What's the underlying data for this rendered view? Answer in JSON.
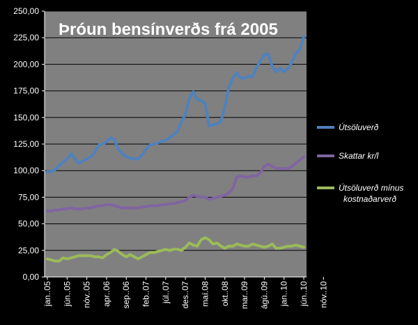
{
  "chart_data": {
    "type": "line",
    "title": "Þróun bensínverðs frá 2005",
    "xlabel": "",
    "ylabel": "",
    "ylim": [
      0,
      250
    ],
    "yticks": [
      "0,00",
      "25,00",
      "50,00",
      "75,00",
      "100,00",
      "125,00",
      "150,00",
      "175,00",
      "200,00",
      "225,00",
      "250,00"
    ],
    "xticks": [
      "jan..05",
      "jún..05",
      "nóv..05",
      "apr..06",
      "sep..06",
      "feb..07",
      "júl..07",
      "des..07",
      "maí.08",
      "okt..08",
      "mar..09",
      "ágú..09",
      "jan..10",
      "jún..10",
      "nóv..10"
    ],
    "grid": true,
    "legend_position": "right",
    "colors": {
      "background": "#000000",
      "plot_area": "#808080",
      "grid": "#000000",
      "text": "#ffffff"
    },
    "series": [
      {
        "name": "Útsöluverð",
        "color": "#4f81bd",
        "values": [
          99,
          99,
          101,
          105,
          108,
          111,
          116,
          111,
          107,
          109,
          111,
          113,
          117,
          124,
          125,
          127,
          131,
          129,
          120,
          116,
          113,
          112,
          111,
          111,
          115,
          120,
          124,
          125,
          126,
          128,
          128,
          131,
          134,
          137,
          146,
          153,
          168,
          174,
          167,
          166,
          163,
          142,
          143,
          144,
          146,
          160,
          178,
          187,
          192,
          187,
          187,
          189,
          188,
          197,
          203,
          209,
          210,
          198,
          193,
          196,
          193,
          196,
          202,
          210,
          214,
          226
        ]
      },
      {
        "name": "Skattar kr/l",
        "color": "#8064a2",
        "values": [
          62,
          62,
          63,
          63,
          64,
          64,
          65,
          64,
          64,
          64,
          65,
          65,
          66,
          67,
          67,
          68,
          68,
          67,
          66,
          65,
          65,
          65,
          65,
          65,
          66,
          66,
          67,
          67,
          67,
          68,
          68,
          69,
          69,
          70,
          71,
          72,
          75,
          77,
          76,
          75,
          75,
          73,
          74,
          75,
          76,
          77,
          79,
          83,
          94,
          95,
          94,
          94,
          95,
          95,
          98,
          104,
          106,
          104,
          102,
          102,
          102,
          102,
          104,
          107,
          110,
          113
        ]
      },
      {
        "name": "Útsöluverð mínus\nkostnaðarverð",
        "color": "#9bbb59",
        "values": [
          17,
          16,
          15,
          15,
          18,
          17,
          18,
          19,
          20,
          20,
          20,
          20,
          19,
          19,
          18,
          21,
          23,
          26,
          24,
          21,
          19,
          21,
          19,
          17,
          19,
          21,
          23,
          23,
          24,
          25,
          26,
          25,
          26,
          26,
          25,
          28,
          32,
          30,
          29,
          35,
          37,
          35,
          31,
          32,
          29,
          27,
          29,
          29,
          31,
          30,
          29,
          29,
          31,
          30,
          29,
          28,
          29,
          31,
          27,
          27,
          28,
          29,
          29,
          30,
          29,
          28
        ]
      }
    ]
  }
}
